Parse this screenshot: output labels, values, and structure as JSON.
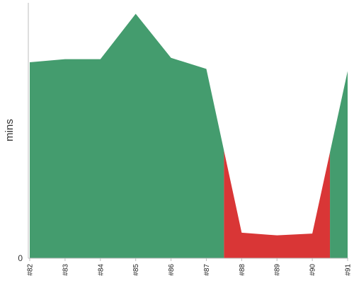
{
  "chart_data": {
    "type": "area",
    "categories": [
      "#82",
      "#83",
      "#84",
      "#85",
      "#86",
      "#87",
      "#88",
      "#89",
      "#90",
      "#91"
    ],
    "values": [
      44.5,
      45.2,
      45.2,
      55.5,
      45.5,
      43.0,
      5.8,
      5.2,
      5.6,
      42.5
    ],
    "status": [
      "success",
      "success",
      "success",
      "success",
      "success",
      "success",
      "failure",
      "failure",
      "failure",
      "success"
    ],
    "colors": {
      "success": "#449c6e",
      "failure": "#d93636"
    },
    "ylabel": "mins",
    "ytick_labels": [
      "0"
    ],
    "ylim": [
      0,
      58
    ],
    "grid": false
  }
}
